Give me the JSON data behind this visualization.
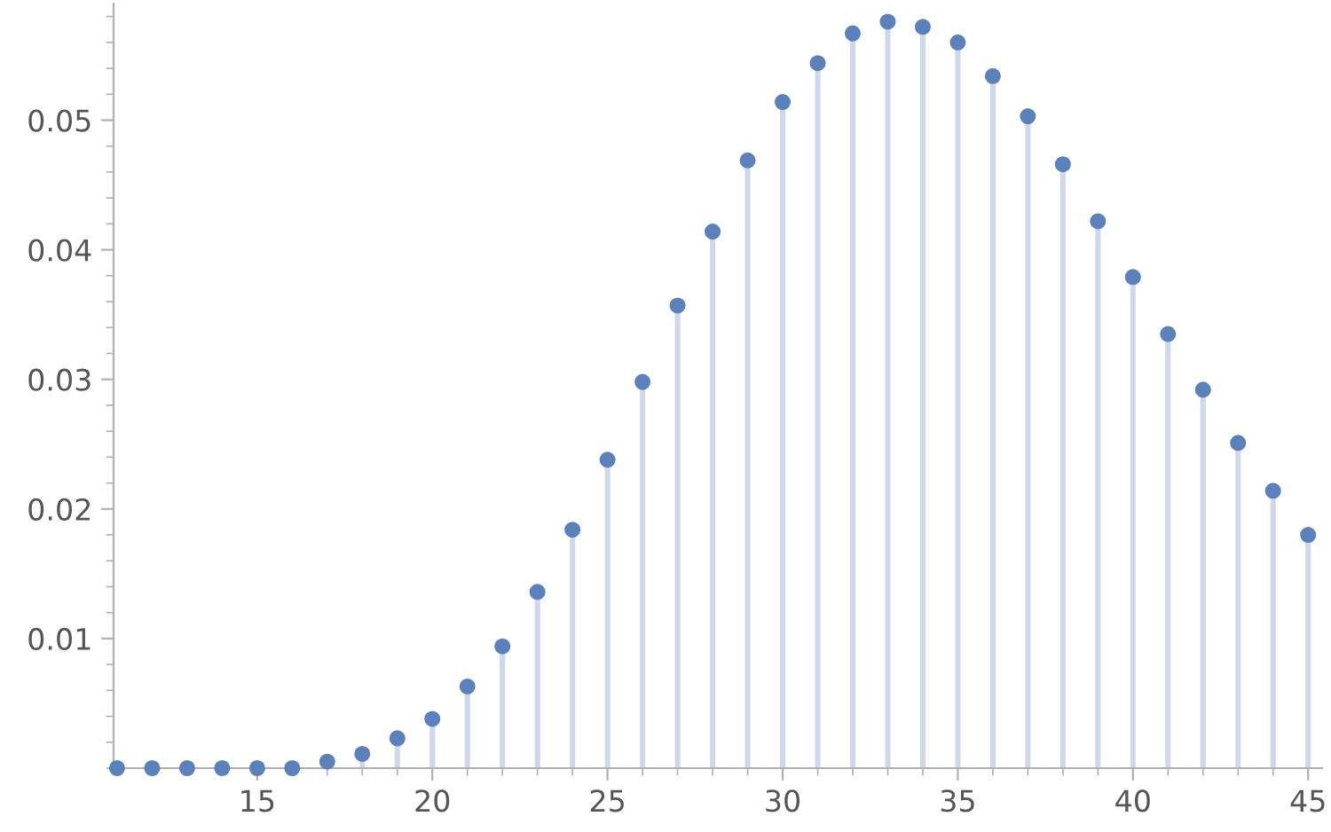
{
  "chart_data": {
    "type": "lollipop",
    "x": [
      11,
      12,
      13,
      14,
      15,
      16,
      17,
      18,
      19,
      20,
      21,
      22,
      23,
      24,
      25,
      26,
      27,
      28,
      29,
      30,
      31,
      32,
      33,
      34,
      35,
      36,
      37,
      38,
      39,
      40,
      41,
      42,
      43,
      44,
      45
    ],
    "series": [
      {
        "color": "#5b81bd",
        "values": [
          0,
          0,
          0,
          0,
          0,
          0,
          0.0005,
          0.0011,
          0.0023,
          0.0038,
          0.0063,
          0.0094,
          0.0136,
          0.0184,
          0.0238,
          0.0298,
          0.0357,
          0.0414,
          0.0469,
          0.0514,
          0.0544,
          0.0567,
          0.0576,
          0.0572,
          0.056,
          0.0534,
          0.0503,
          0.0466,
          0.0422,
          0.0379,
          0.0335,
          0.0292,
          0.0251,
          0.0214,
          0.018
        ]
      }
    ],
    "xlim": [
      10.9,
      45.4
    ],
    "ylim": [
      0,
      0.059
    ],
    "xticks": [
      15,
      20,
      25,
      30,
      35,
      40,
      45
    ],
    "yticks": [
      0.01,
      0.02,
      0.03,
      0.04,
      0.05
    ],
    "marker": "circle",
    "legend": false
  }
}
